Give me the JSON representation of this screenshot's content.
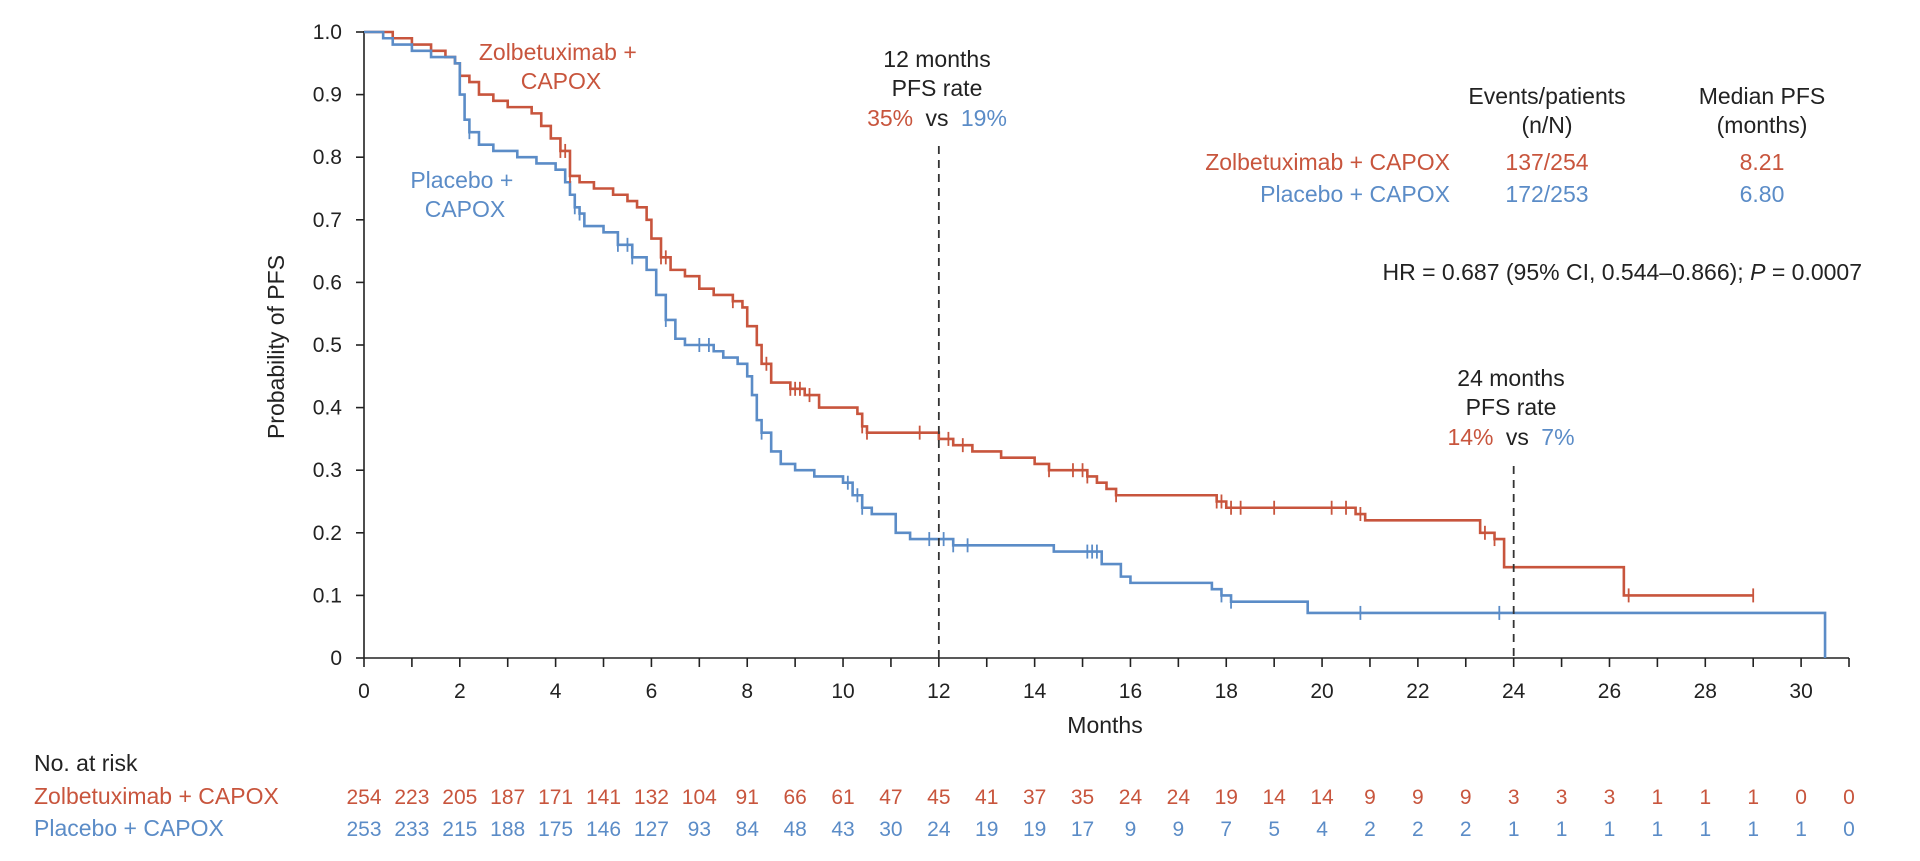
{
  "colors": {
    "zolb": "#c8553d",
    "placebo": "#5b8cc7",
    "axis": "#222222"
  },
  "chart_data": {
    "type": "line",
    "title": "",
    "xlabel": "Months",
    "ylabel": "Probability of PFS",
    "xlim": [
      0,
      31
    ],
    "ylim": [
      0,
      1.0
    ],
    "x_ticks": [
      0,
      2,
      4,
      6,
      8,
      10,
      12,
      14,
      16,
      18,
      20,
      22,
      24,
      26,
      28,
      30
    ],
    "y_ticks": [
      0,
      0.1,
      0.2,
      0.3,
      0.4,
      0.5,
      0.6,
      0.7,
      0.8,
      0.9,
      1.0
    ],
    "y_tick_labels": [
      "0",
      "0.1",
      "0.2",
      "0.3",
      "0.4",
      "0.5",
      "0.6",
      "0.7",
      "0.8",
      "0.9",
      "1.0"
    ],
    "series": [
      {
        "name": "Zolbetuximab + CAPOX",
        "color": "#c8553d",
        "steps": [
          [
            0,
            1.0
          ],
          [
            0.6,
            0.99
          ],
          [
            1.0,
            0.98
          ],
          [
            1.4,
            0.97
          ],
          [
            1.7,
            0.96
          ],
          [
            1.9,
            0.95
          ],
          [
            2.0,
            0.93
          ],
          [
            2.2,
            0.92
          ],
          [
            2.4,
            0.9
          ],
          [
            2.7,
            0.89
          ],
          [
            3.0,
            0.88
          ],
          [
            3.5,
            0.87
          ],
          [
            3.7,
            0.85
          ],
          [
            3.9,
            0.83
          ],
          [
            4.1,
            0.81
          ],
          [
            4.3,
            0.77
          ],
          [
            4.5,
            0.76
          ],
          [
            4.8,
            0.75
          ],
          [
            5.2,
            0.74
          ],
          [
            5.5,
            0.73
          ],
          [
            5.7,
            0.72
          ],
          [
            5.9,
            0.7
          ],
          [
            6.0,
            0.67
          ],
          [
            6.2,
            0.64
          ],
          [
            6.4,
            0.62
          ],
          [
            6.7,
            0.61
          ],
          [
            7.0,
            0.59
          ],
          [
            7.3,
            0.58
          ],
          [
            7.7,
            0.57
          ],
          [
            7.9,
            0.56
          ],
          [
            8.0,
            0.53
          ],
          [
            8.2,
            0.5
          ],
          [
            8.3,
            0.47
          ],
          [
            8.5,
            0.44
          ],
          [
            8.9,
            0.43
          ],
          [
            9.2,
            0.42
          ],
          [
            9.5,
            0.4
          ],
          [
            10.3,
            0.39
          ],
          [
            10.4,
            0.37
          ],
          [
            10.5,
            0.36
          ],
          [
            12.0,
            0.35
          ],
          [
            12.3,
            0.34
          ],
          [
            12.7,
            0.33
          ],
          [
            13.3,
            0.32
          ],
          [
            14.0,
            0.31
          ],
          [
            14.3,
            0.3
          ],
          [
            15.1,
            0.29
          ],
          [
            15.3,
            0.28
          ],
          [
            15.5,
            0.27
          ],
          [
            15.7,
            0.26
          ],
          [
            17.8,
            0.25
          ],
          [
            18.0,
            0.24
          ],
          [
            20.7,
            0.23
          ],
          [
            20.9,
            0.22
          ],
          [
            23.3,
            0.2
          ],
          [
            23.6,
            0.19
          ],
          [
            23.8,
            0.145
          ],
          [
            26.3,
            0.1
          ],
          [
            29.0,
            0.1
          ]
        ],
        "censor_x": [
          4.1,
          4.2,
          4.3,
          6.2,
          6.3,
          7.7,
          8.4,
          8.9,
          9.0,
          9.1,
          9.3,
          10.4,
          10.5,
          11.6,
          12.2,
          12.5,
          14.3,
          14.8,
          15.0,
          15.1,
          15.7,
          17.8,
          17.9,
          18.1,
          18.3,
          19.0,
          20.2,
          20.5,
          20.8,
          23.4,
          23.6,
          26.4,
          29.0
        ]
      },
      {
        "name": "Placebo + CAPOX",
        "color": "#5b8cc7",
        "steps": [
          [
            0,
            1.0
          ],
          [
            0.4,
            0.99
          ],
          [
            0.6,
            0.98
          ],
          [
            1.0,
            0.97
          ],
          [
            1.4,
            0.96
          ],
          [
            1.9,
            0.95
          ],
          [
            2.0,
            0.9
          ],
          [
            2.1,
            0.86
          ],
          [
            2.2,
            0.84
          ],
          [
            2.4,
            0.82
          ],
          [
            2.7,
            0.81
          ],
          [
            3.2,
            0.8
          ],
          [
            3.6,
            0.79
          ],
          [
            4.0,
            0.78
          ],
          [
            4.2,
            0.76
          ],
          [
            4.3,
            0.74
          ],
          [
            4.4,
            0.72
          ],
          [
            4.5,
            0.71
          ],
          [
            4.6,
            0.69
          ],
          [
            5.0,
            0.68
          ],
          [
            5.3,
            0.66
          ],
          [
            5.6,
            0.64
          ],
          [
            5.9,
            0.62
          ],
          [
            6.1,
            0.58
          ],
          [
            6.3,
            0.54
          ],
          [
            6.5,
            0.51
          ],
          [
            6.7,
            0.5
          ],
          [
            7.3,
            0.49
          ],
          [
            7.5,
            0.48
          ],
          [
            7.8,
            0.47
          ],
          [
            8.0,
            0.45
          ],
          [
            8.1,
            0.42
          ],
          [
            8.2,
            0.38
          ],
          [
            8.3,
            0.36
          ],
          [
            8.5,
            0.33
          ],
          [
            8.7,
            0.31
          ],
          [
            9.0,
            0.3
          ],
          [
            9.4,
            0.29
          ],
          [
            10.0,
            0.28
          ],
          [
            10.2,
            0.26
          ],
          [
            10.4,
            0.24
          ],
          [
            10.6,
            0.23
          ],
          [
            11.1,
            0.2
          ],
          [
            11.4,
            0.19
          ],
          [
            12.3,
            0.18
          ],
          [
            14.4,
            0.17
          ],
          [
            15.4,
            0.15
          ],
          [
            15.8,
            0.13
          ],
          [
            16.0,
            0.12
          ],
          [
            17.7,
            0.11
          ],
          [
            17.9,
            0.1
          ],
          [
            18.1,
            0.09
          ],
          [
            19.7,
            0.072
          ],
          [
            30.5,
            0.072
          ],
          [
            30.5,
            0.0
          ]
        ],
        "censor_x": [
          2.2,
          4.4,
          4.5,
          5.3,
          5.5,
          5.6,
          6.3,
          7.0,
          7.2,
          8.3,
          10.1,
          10.3,
          10.4,
          11.8,
          12.1,
          12.3,
          12.6,
          15.1,
          15.2,
          15.3,
          17.9,
          18.1,
          20.8,
          23.7
        ]
      }
    ],
    "annotations": {
      "vline_12": {
        "x": 12,
        "top": "12 months",
        "mid": "PFS rate",
        "zval": "35%",
        "vs": "vs",
        "pval": "19%"
      },
      "vline_24": {
        "x": 24,
        "top": "24 months",
        "mid": "PFS rate",
        "zval": "14%",
        "vs": "vs",
        "pval": "7%"
      },
      "curve_label_zolb": [
        "Zolbetuximab +",
        "CAPOX"
      ],
      "curve_label_placebo": [
        "Placebo +",
        "CAPOX"
      ]
    },
    "stats_table": {
      "col1_header": [
        "Events/patients",
        "(n/N)"
      ],
      "col2_header": [
        "Median PFS",
        "(months)"
      ],
      "rows": [
        {
          "name": "Zolbetuximab + CAPOX",
          "events": "137/254",
          "median": "8.21"
        },
        {
          "name": "Placebo + CAPOX",
          "events": "172/253",
          "median": "6.80"
        }
      ],
      "hr_prefix": "HR = 0.687 (95% CI, 0.544–0.866); ",
      "hr_p": "P",
      "hr_suffix": " = 0.0007"
    },
    "risk_table": {
      "title": "No. at risk",
      "x": [
        0,
        1,
        2,
        3,
        4,
        5,
        6,
        7,
        8,
        9,
        10,
        11,
        12,
        13,
        14,
        15,
        16,
        17,
        18,
        19,
        20,
        21,
        22,
        23,
        24,
        25,
        26,
        27,
        28,
        29,
        30,
        31
      ],
      "rows": [
        {
          "name": "Zolbetuximab + CAPOX",
          "values": [
            "254",
            "223",
            "205",
            "187",
            "171",
            "141",
            "132",
            "104",
            "91",
            "66",
            "61",
            "47",
            "45",
            "41",
            "37",
            "35",
            "24",
            "24",
            "19",
            "14",
            "14",
            "9",
            "9",
            "9",
            "3",
            "3",
            "3",
            "1",
            "1",
            "1",
            "0",
            "0"
          ]
        },
        {
          "name": "Placebo + CAPOX",
          "values": [
            "253",
            "233",
            "215",
            "188",
            "175",
            "146",
            "127",
            "93",
            "84",
            "48",
            "43",
            "30",
            "24",
            "19",
            "19",
            "17",
            "9",
            "9",
            "7",
            "5",
            "4",
            "2",
            "2",
            "2",
            "1",
            "1",
            "1",
            "1",
            "1",
            "1",
            "1",
            "0"
          ]
        }
      ]
    }
  }
}
